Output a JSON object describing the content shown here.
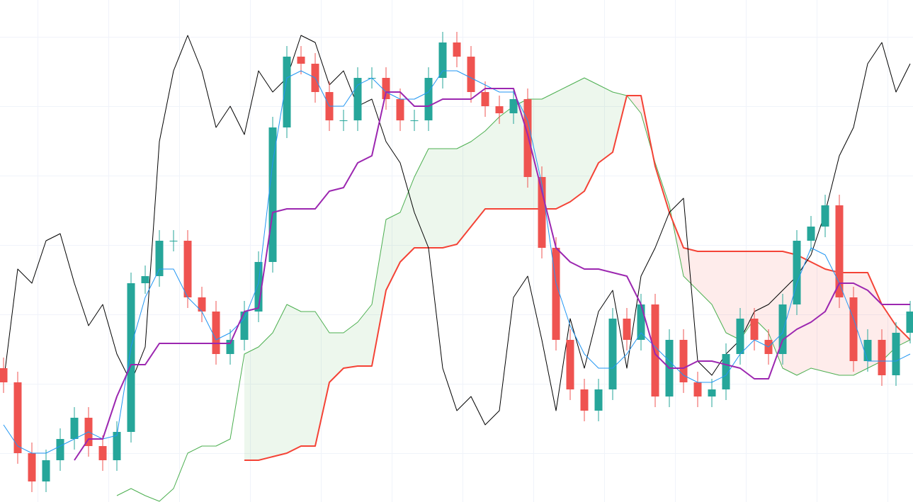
{
  "chart_data": {
    "type": "candlestick",
    "x": [
      0,
      1,
      2,
      3,
      4,
      5,
      6,
      7,
      8,
      9,
      10,
      11,
      12,
      13,
      14,
      15,
      16,
      17,
      18,
      19,
      20,
      21,
      22,
      23,
      24,
      25,
      26,
      27,
      28,
      29,
      30,
      31,
      32,
      33,
      34,
      35,
      36,
      37,
      38,
      39,
      40,
      41,
      42,
      43,
      44,
      45,
      46,
      47,
      48,
      49,
      50,
      51,
      52,
      53,
      54,
      55,
      56,
      57,
      58,
      59,
      60,
      61,
      62,
      63,
      64
    ],
    "xlim": [
      -0.25,
      64.2
    ],
    "ylim": [
      0,
      709
    ],
    "up_color": "#26a69a",
    "down_color": "#ef5350",
    "open": [
      189,
      169,
      69,
      29,
      59,
      89,
      119,
      79,
      59,
      99,
      309,
      319,
      369,
      369,
      289,
      269,
      209,
      229,
      269,
      339,
      529,
      629,
      619,
      579,
      539,
      539,
      599,
      599,
      569,
      539,
      539,
      599,
      649,
      629,
      579,
      559,
      549,
      569,
      459,
      359,
      229,
      159,
      129,
      159,
      259,
      229,
      279,
      149,
      229,
      169,
      149,
      159,
      209,
      259,
      229,
      209,
      279,
      369,
      389,
      419,
      289,
      199,
      229,
      179,
      239
    ],
    "high": [
      204,
      184,
      84,
      74,
      104,
      134,
      134,
      94,
      114,
      324,
      334,
      384,
      384,
      384,
      304,
      284,
      244,
      284,
      354,
      544,
      644,
      644,
      634,
      594,
      554,
      614,
      614,
      614,
      584,
      554,
      614,
      664,
      664,
      644,
      594,
      574,
      584,
      584,
      474,
      374,
      244,
      174,
      174,
      274,
      274,
      294,
      294,
      244,
      244,
      184,
      174,
      224,
      274,
      274,
      244,
      294,
      384,
      404,
      434,
      434,
      304,
      244,
      244,
      254,
      284
    ],
    "low": [
      154,
      54,
      14,
      14,
      44,
      74,
      64,
      44,
      44,
      84,
      294,
      304,
      354,
      274,
      254,
      194,
      194,
      214,
      254,
      324,
      514,
      604,
      564,
      524,
      524,
      524,
      584,
      554,
      524,
      524,
      524,
      584,
      614,
      564,
      544,
      534,
      534,
      444,
      344,
      214,
      144,
      114,
      114,
      144,
      214,
      214,
      134,
      134,
      154,
      134,
      134,
      144,
      194,
      214,
      194,
      194,
      264,
      354,
      374,
      274,
      184,
      184,
      164,
      164,
      224
    ],
    "close": [
      169,
      69,
      29,
      59,
      89,
      119,
      79,
      59,
      99,
      309,
      319,
      369,
      369,
      289,
      269,
      209,
      229,
      269,
      339,
      529,
      629,
      619,
      579,
      539,
      539,
      599,
      599,
      569,
      539,
      539,
      599,
      649,
      629,
      579,
      559,
      549,
      569,
      459,
      359,
      229,
      159,
      129,
      159,
      259,
      229,
      279,
      149,
      229,
      169,
      149,
      159,
      209,
      259,
      229,
      209,
      279,
      369,
      389,
      419,
      289,
      199,
      229,
      179,
      239,
      269
    ],
    "lines": [
      {
        "color": "#2196f3",
        "width": 1,
        "values": [
          109,
          79,
          69,
          69,
          79,
          89,
          99,
          89,
          94,
          219,
          289,
          329,
          329,
          289,
          269,
          229,
          239,
          259,
          309,
          479,
          599,
          609,
          599,
          559,
          559,
          589,
          599,
          579,
          569,
          569,
          579,
          609,
          609,
          599,
          589,
          579,
          579,
          539,
          449,
          309,
          249,
          209,
          189,
          189,
          209,
          239,
          219,
          199,
          179,
          169,
          169,
          179,
          209,
          229,
          219,
          239,
          309,
          359,
          349,
          309,
          259,
          199,
          199,
          199,
          209
        ]
      },
      {
        "color": "#9c27b0",
        "width": 2,
        "values": [
          null,
          null,
          null,
          null,
          null,
          59,
          89,
          89,
          149,
          194,
          194,
          224,
          224,
          224,
          224,
          224,
          224,
          269,
          274,
          409,
          414,
          414,
          414,
          439,
          444,
          479,
          489,
          579,
          579,
          559,
          559,
          569,
          569,
          569,
          584,
          584,
          584,
          519,
          439,
          359,
          339,
          329,
          329,
          324,
          319,
          279,
          209,
          189,
          189,
          199,
          199,
          194,
          189,
          174,
          174,
          229,
          244,
          254,
          269,
          309,
          309,
          299,
          279,
          279,
          279
        ]
      },
      {
        "color": "#000000",
        "width": 1,
        "values": [
          169,
          329,
          309,
          369,
          379,
          309,
          249,
          279,
          209,
          169,
          219,
          509,
          609,
          659,
          609,
          529,
          559,
          519,
          609,
          579,
          599,
          659,
          649,
          589,
          609,
          559,
          569,
          509,
          479,
          409,
          359,
          189,
          129,
          149,
          109,
          129,
          289,
          319,
          229,
          129,
          259,
          189,
          269,
          299,
          189,
          319,
          359,
          409,
          429,
          199,
          179,
          209,
          229,
          269,
          279,
          299,
          319,
          349,
          409,
          489,
          529,
          619,
          649,
          579,
          619
        ]
      },
      {
        "color": "#4caf50",
        "width": 1,
        "values": [
          null,
          null,
          null,
          null,
          null,
          null,
          null,
          null,
          9,
          19,
          9,
          1,
          19,
          69,
          79,
          79,
          89,
          209,
          219,
          239,
          279,
          269,
          269,
          239,
          239,
          254,
          279,
          399,
          409,
          459,
          499,
          499,
          499,
          509,
          524,
          544,
          559,
          569,
          569,
          579,
          589,
          599,
          589,
          579,
          574,
          549,
          479,
          419,
          319,
          299,
          279,
          239,
          229,
          259,
          239,
          189,
          179,
          189,
          184,
          179,
          179,
          189,
          199,
          219,
          229
        ]
      },
      {
        "color": "#f44336",
        "width": 2,
        "values": [
          null,
          null,
          null,
          null,
          null,
          null,
          null,
          null,
          null,
          null,
          null,
          null,
          null,
          null,
          null,
          null,
          null,
          59,
          59,
          64,
          69,
          79,
          79,
          169,
          189,
          192,
          192,
          299,
          339,
          359,
          359,
          359,
          364,
          389,
          414,
          414,
          414,
          414,
          414,
          414,
          424,
          439,
          479,
          494,
          574,
          574,
          474,
          409,
          359,
          354,
          354,
          354,
          354,
          354,
          354,
          354,
          349,
          339,
          329,
          324,
          324,
          324,
          279,
          249,
          229
        ]
      }
    ],
    "cloud_colors": [
      "rgba(76,175,80,0.1)",
      "rgba(244,67,54,0.1)"
    ]
  }
}
